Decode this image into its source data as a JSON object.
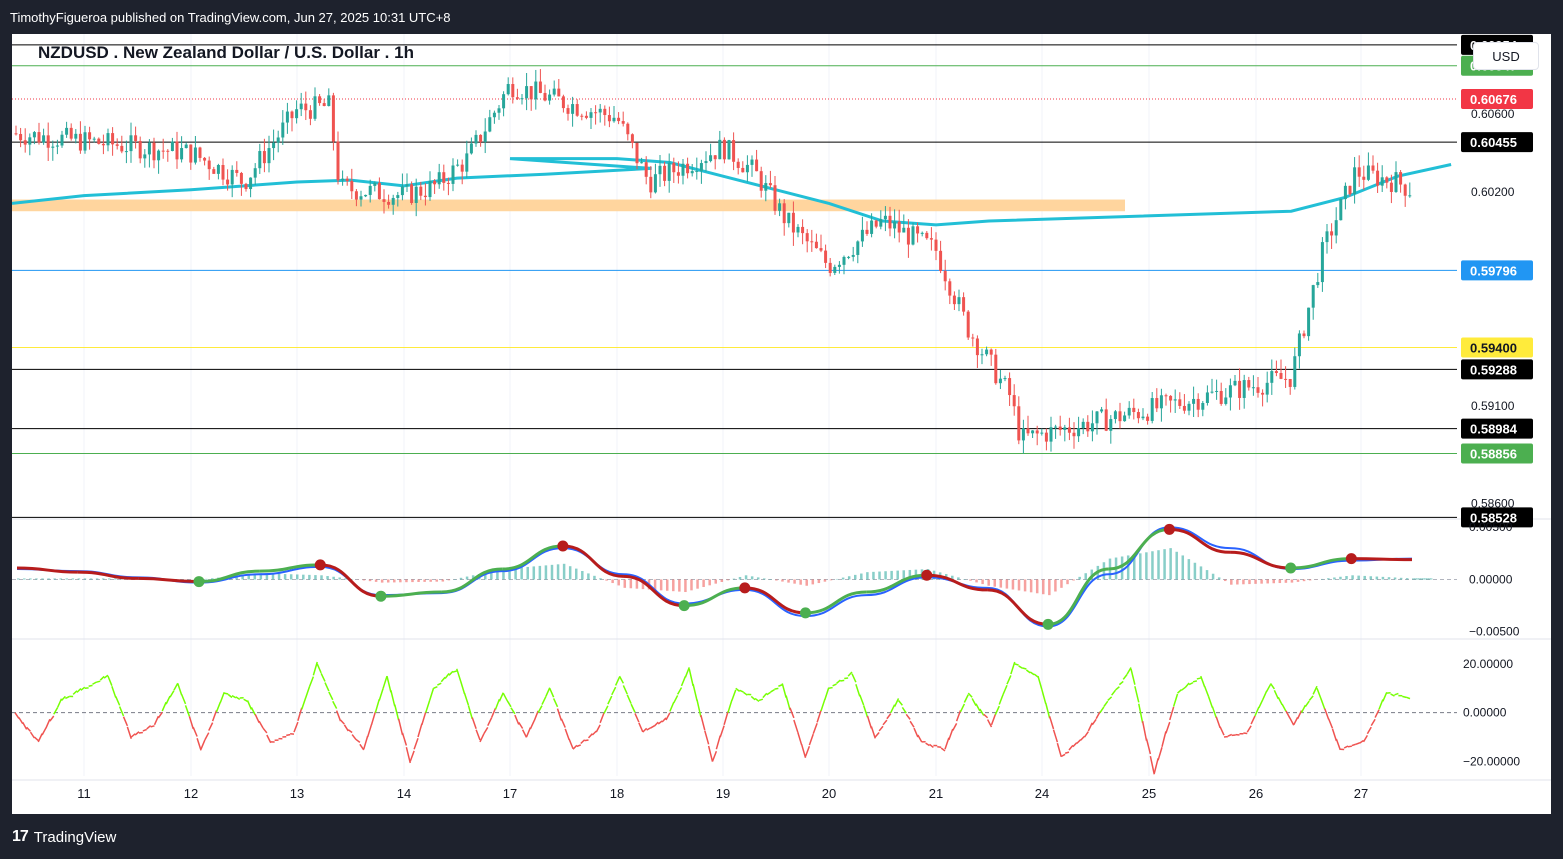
{
  "header": {
    "publisher_line": "TimothyFigueroa published on TradingView.com, Jun 27, 2025 10:31 UTC+8"
  },
  "chart_title": "NZDUSD . New Zealand Dollar / U.S. Dollar . 1h",
  "currency_button": "USD",
  "footer": {
    "brand": "TradingView",
    "logo_icon": "tradingview-logo-icon"
  },
  "colors": {
    "bull": "#26a69a",
    "bear": "#ef5350",
    "ma": "#22bfd6",
    "zone": "#ffd59e"
  },
  "chart_data": [
    {
      "type": "candlestick",
      "title": "NZDUSD . New Zealand Dollar / U.S. Dollar . 1h",
      "x_ticks": [
        "11",
        "12",
        "13",
        "14",
        "17",
        "18",
        "19",
        "20",
        "21",
        "24",
        "25",
        "26",
        "27"
      ],
      "y_ticks": [
        "0.60600",
        "0.60200",
        "0.59100",
        "0.58600"
      ],
      "ylim": [
        0.5853,
        0.6101
      ],
      "last_price": {
        "value": 0.60676,
        "label": "0.60676",
        "color": "#f23645"
      },
      "horizontal_levels": [
        {
          "value": 0.60954,
          "label": "0.60954",
          "color": "#000000",
          "badge": "#000000"
        },
        {
          "value": 0.60847,
          "label": "0.60847",
          "color": "#4caf50",
          "badge": "#4caf50"
        },
        {
          "value": 0.60455,
          "label": "0.60455",
          "color": "#000000",
          "badge": "#000000"
        },
        {
          "value": 0.59796,
          "label": "0.59796",
          "color": "#2196f3",
          "badge": "#2196f3"
        },
        {
          "value": 0.594,
          "label": "0.59400",
          "color": "#ffeb3b",
          "badge": "#ffeb3b"
        },
        {
          "value": 0.59288,
          "label": "0.59288",
          "color": "#000000",
          "badge": "#000000"
        },
        {
          "value": 0.58984,
          "label": "0.58984",
          "color": "#000000",
          "badge": "#000000"
        },
        {
          "value": 0.58856,
          "label": "0.58856",
          "color": "#4caf50",
          "badge": "#4caf50"
        },
        {
          "value": 0.58528,
          "label": "0.58528",
          "color": "#000000",
          "badge": "#000000"
        }
      ],
      "supply_zone": {
        "from": 0.601,
        "to": 0.6016,
        "x_start": "10",
        "x_end": "24"
      },
      "price_path": [
        [
          "10",
          0.605
        ],
        [
          "11",
          0.6046
        ],
        [
          "12",
          0.604
        ],
        [
          "12.5",
          0.6025
        ],
        [
          "13",
          0.6062
        ],
        [
          "13.3",
          0.6064
        ],
        [
          "13.4",
          0.6022
        ],
        [
          "14",
          0.6018
        ],
        [
          "14.3",
          0.6023
        ],
        [
          "14.6",
          0.6037
        ],
        [
          "17",
          0.6075
        ],
        [
          "17.5",
          0.6066
        ],
        [
          "18",
          0.6058
        ],
        [
          "18.3",
          0.6025
        ],
        [
          "19",
          0.6043
        ],
        [
          "19.3",
          0.603
        ],
        [
          "19.6",
          0.6005
        ],
        [
          "20",
          0.5982
        ],
        [
          "20.5",
          0.6005
        ],
        [
          "21",
          0.599
        ],
        [
          "21.3",
          0.595
        ],
        [
          "21.7",
          0.5915
        ],
        [
          "21.8",
          0.5893
        ],
        [
          "22",
          0.5925
        ],
        [
          "22.3",
          0.599
        ],
        [
          "22.6",
          0.603
        ],
        [
          "23",
          0.6025
        ],
        [
          "23.3",
          0.6015
        ],
        [
          "23.6",
          0.603
        ],
        [
          "24",
          0.6038
        ],
        [
          "24.3",
          0.602
        ],
        [
          "24.8",
          0.6045
        ],
        [
          "25",
          0.6062
        ],
        [
          "25.3",
          0.6058
        ],
        [
          "25.8",
          0.6067
        ]
      ],
      "ma_path": [
        [
          "10",
          0.6014
        ],
        [
          "11",
          0.6018
        ],
        [
          "12",
          0.6021
        ],
        [
          "13",
          0.6025
        ],
        [
          "13.5",
          0.6026
        ],
        [
          "14",
          0.6023
        ],
        [
          "14.5",
          0.6027
        ],
        [
          "15",
          0.6029
        ],
        [
          "16",
          0.6032
        ],
        [
          "17",
          0.6037
        ],
        [
          "18",
          0.6037
        ],
        [
          "18.5",
          0.6035
        ],
        [
          "19",
          0.6028
        ],
        [
          "19.5",
          0.6021
        ],
        [
          "20",
          0.6014
        ],
        [
          "20.5",
          0.6005
        ],
        [
          "21",
          0.6003
        ],
        [
          "21.5",
          0.6005
        ],
        [
          "22",
          0.601
        ],
        [
          "22.5",
          0.6017
        ],
        [
          "23",
          0.6028
        ],
        [
          "23.5",
          0.6034
        ]
      ]
    },
    {
      "type": "line",
      "y_ticks": [
        "0.00500",
        "0.00000",
        "−0.00500"
      ],
      "ylim": [
        -0.0056,
        0.0055
      ],
      "series": [
        {
          "values": [
            0.001,
            0.0008,
            0.0002,
            -0.0003,
            0.0005,
            0.0012,
            -0.0015,
            -0.0013,
            0.0008,
            0.003,
            0.0005,
            -0.0023,
            -0.001,
            -0.0035,
            -0.0015,
            0.0002,
            -0.0008,
            -0.0045,
            0.0005,
            0.005,
            0.003,
            0.001,
            0.0018,
            0.002
          ],
          "color": "#2962ff"
        },
        {
          "values": [
            0.0011,
            0.0007,
            0.0001,
            -0.0002,
            0.0008,
            0.0014,
            -0.0016,
            -0.0012,
            0.001,
            0.0032,
            0.0003,
            -0.0025,
            -0.0008,
            -0.0032,
            -0.0012,
            0.0004,
            -0.001,
            -0.0043,
            0.001,
            0.0048,
            0.0026,
            0.0011,
            0.002,
            0.0019
          ],
          "color_up": "#4caf50",
          "color_down": "#b71c1c"
        }
      ],
      "histogram": [
        0.0001,
        0.0001,
        0.0001,
        0.0,
        0.0006,
        0.0004,
        -0.0003,
        -0.0002,
        0.001,
        0.0015,
        -0.0008,
        -0.0012,
        0.0004,
        -0.0006,
        0.0007,
        0.001,
        -0.0006,
        -0.0015,
        0.002,
        0.003,
        -0.0005,
        -0.0003,
        0.0004,
        0.0001
      ]
    },
    {
      "type": "line",
      "y_ticks": [
        "20.00000",
        "0.00000",
        "−20.00000"
      ],
      "ylim": [
        -26,
        29
      ],
      "series": [
        {
          "values": [
            0,
            -12,
            5,
            10,
            15,
            -10,
            -5,
            12,
            -15,
            8,
            5,
            -12,
            -8,
            20,
            -3,
            -15,
            15,
            -20,
            10,
            18,
            -12,
            8,
            -10,
            10,
            -15,
            -8,
            15,
            -8,
            -3,
            18,
            -20,
            10,
            5,
            12,
            -18,
            10,
            16,
            -10,
            5,
            -12,
            -15,
            8,
            -5,
            20,
            15,
            -18,
            -10,
            5,
            18,
            -25,
            8,
            15,
            -10,
            -8,
            12,
            -5,
            10,
            -15,
            -12,
            8,
            6
          ],
          "color_up": "#76ff03",
          "color_down": "#ef5350"
        }
      ]
    }
  ]
}
